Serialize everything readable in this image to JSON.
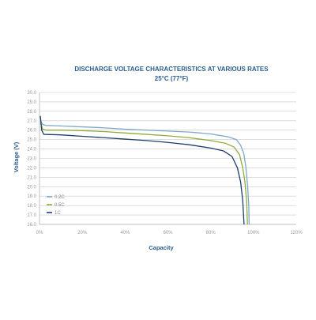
{
  "chart_data": {
    "type": "line",
    "title": "DISCHARGE VOLTAGE CHARACTERISTICS AT VARIOUS RATES",
    "subtitle": "25°C (77°F)",
    "xlabel": "Capacity",
    "ylabel": "Voltage (V)",
    "xlim": [
      0,
      120
    ],
    "ylim": [
      16.0,
      30.0
    ],
    "x_ticks": [
      "0%",
      "20%",
      "40%",
      "60%",
      "80%",
      "100%",
      "120%"
    ],
    "y_ticks": [
      "16.0",
      "17.0",
      "18.0",
      "19.0",
      "20.0",
      "21.0",
      "22.0",
      "23.0",
      "24.0",
      "25.0",
      "26.0",
      "27.0",
      "28.0",
      "29.0",
      "30.0"
    ],
    "grid": "horizontal",
    "legend": "left",
    "series": [
      {
        "name": "0.2C",
        "color": "#7fa8c8",
        "points": [
          [
            0.5,
            27.0
          ],
          [
            1.5,
            26.6
          ],
          [
            3,
            26.5
          ],
          [
            10,
            26.45
          ],
          [
            20,
            26.35
          ],
          [
            30,
            26.25
          ],
          [
            40,
            26.1
          ],
          [
            50,
            26.0
          ],
          [
            60,
            25.9
          ],
          [
            70,
            25.8
          ],
          [
            80,
            25.6
          ],
          [
            88,
            25.3
          ],
          [
            92,
            25.0
          ],
          [
            94,
            24.4
          ],
          [
            95.5,
            23.5
          ],
          [
            96.5,
            22.0
          ],
          [
            97.3,
            20.0
          ],
          [
            97.8,
            18.0
          ],
          [
            98.0,
            16.0
          ]
        ]
      },
      {
        "name": "0.5C",
        "color": "#8fac3c",
        "points": [
          [
            0.5,
            26.8
          ],
          [
            1.5,
            26.1
          ],
          [
            3,
            26.0
          ],
          [
            10,
            26.0
          ],
          [
            20,
            25.95
          ],
          [
            30,
            25.85
          ],
          [
            40,
            25.7
          ],
          [
            50,
            25.55
          ],
          [
            60,
            25.4
          ],
          [
            70,
            25.2
          ],
          [
            80,
            24.9
          ],
          [
            87,
            24.6
          ],
          [
            91,
            24.2
          ],
          [
            93.5,
            23.4
          ],
          [
            95,
            22.0
          ],
          [
            96,
            20.5
          ],
          [
            96.8,
            18.5
          ],
          [
            97.2,
            16.0
          ]
        ]
      },
      {
        "name": "1C",
        "color": "#1f3d6b",
        "points": [
          [
            0.4,
            27.5
          ],
          [
            1,
            26.0
          ],
          [
            2,
            25.55
          ],
          [
            10,
            25.5
          ],
          [
            20,
            25.35
          ],
          [
            30,
            25.2
          ],
          [
            40,
            25.05
          ],
          [
            50,
            24.9
          ],
          [
            60,
            24.7
          ],
          [
            70,
            24.45
          ],
          [
            80,
            24.1
          ],
          [
            86,
            23.8
          ],
          [
            90,
            23.2
          ],
          [
            92.5,
            22.0
          ],
          [
            94,
            20.5
          ],
          [
            95,
            18.5
          ],
          [
            95.6,
            16.0
          ]
        ]
      }
    ]
  }
}
